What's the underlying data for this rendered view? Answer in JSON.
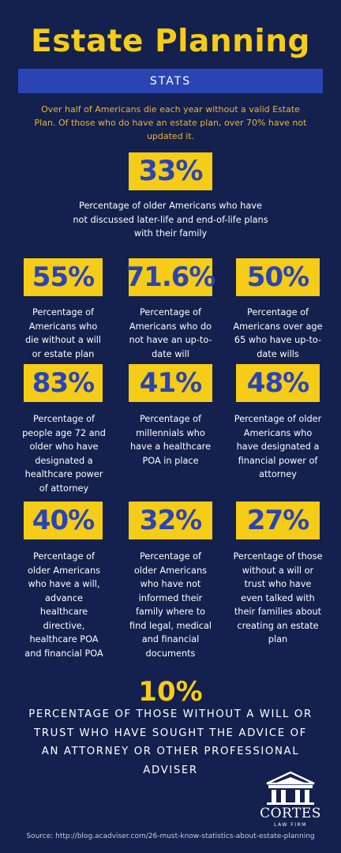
{
  "header": {
    "title": "Estate Planning",
    "subtitle": "STATS"
  },
  "intro": "Over half of Americans die each year without a valid Estate Plan. Of those who do have an estate plan, over 70% have not updated it.",
  "featured": {
    "value": "33%",
    "desc": "Percentage of older Americans who have not discussed later-life and end-of-life plans with their family"
  },
  "stats": [
    {
      "value": "55%",
      "desc": "Percentage of Americans who die without a will or estate plan"
    },
    {
      "value": "71.6%",
      "desc": "Percentage of Americans who do not have an up-to-date will"
    },
    {
      "value": "50%",
      "desc": "Percentage of Americans over age 65 who have up-to-date wills"
    },
    {
      "value": "83%",
      "desc": "Percentage of people age 72 and older who have designated a healthcare power of attorney"
    },
    {
      "value": "41%",
      "desc": "Percentage of millennials who have a healthcare POA in place"
    },
    {
      "value": "48%",
      "desc": "Percentage of older Americans who have designated a financial power of attorney"
    },
    {
      "value": "40%",
      "desc": "Percentage of older Americans who have a will, advance healthcare directive, healthcare POA and financial POA"
    },
    {
      "value": "32%",
      "desc": "Percentage of older Americans who have not informed their family where to find legal, medical and financial documents"
    },
    {
      "value": "27%",
      "desc": "Percentage of those without a will or trust who have even talked with their families about creating an estate plan"
    }
  ],
  "final": {
    "value": "10%",
    "desc": "PERCENTAGE OF THOSE WITHOUT A WILL OR TRUST WHO HAVE SOUGHT THE ADVICE OF AN ATTORNEY OR OTHER PROFESSIONAL ADVISER"
  },
  "logo": {
    "name": "CORTES",
    "sub": "LAW FIRM",
    "icon": "courthouse-icon"
  },
  "source": "Source: http://blog.acadviser.com/26-must-know-statistics-about-estate-planning",
  "colors": {
    "background": "#14204d",
    "accent_yellow": "#f5cc17",
    "accent_blue": "#2a44b4"
  }
}
